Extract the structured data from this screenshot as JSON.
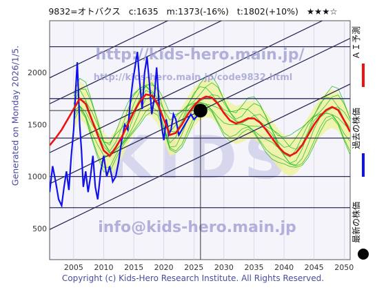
{
  "header": {
    "ticker": "9832=オトバクス",
    "current": "c:1635",
    "median": "m:1373(-16%)",
    "target": "t:1802(+10%)",
    "rating": "★★★☆"
  },
  "left_label": "Generated on Monday 2026/1/5.",
  "watermarks": {
    "top": "http://kids-hero.main.jp/",
    "mid": "http://kids-hero.main.jp/code9832.html",
    "bottom": "info@kids-hero.main.jp",
    "big": "KIDS"
  },
  "legend": {
    "ai": "ＡＩ予測",
    "past": "過去の株価",
    "latest": "最新の株価"
  },
  "footer": "Copyright (c) Kids-Hero Research Institute. All Rights Reserved.",
  "colors": {
    "ai": "#ee1111",
    "past": "#1111ee",
    "latest": "#000000",
    "band": "#eef2a0",
    "green": "#22bb22",
    "trend": "#2a2a5a"
  },
  "chart_data": {
    "type": "line",
    "xlim": [
      2001,
      2051
    ],
    "ylim": [
      200,
      2500
    ],
    "xticks": [
      2005,
      2010,
      2015,
      2020,
      2025,
      2030,
      2035,
      2040,
      2045,
      2050
    ],
    "yticks": [
      500,
      1000,
      1500,
      2000
    ],
    "hlines": [
      700,
      1000,
      1370,
      1750,
      2250
    ],
    "trend_lines": [
      {
        "x": [
          2001,
          2051
        ],
        "y": [
          1950,
          3350
        ]
      },
      {
        "x": [
          2001,
          2051
        ],
        "y": [
          1700,
          3100
        ]
      },
      {
        "x": [
          2001,
          2051
        ],
        "y": [
          1230,
          2630
        ]
      },
      {
        "x": [
          2001,
          2051
        ],
        "y": [
          930,
          2330
        ]
      },
      {
        "x": [
          2001,
          2051
        ],
        "y": [
          490,
          1890
        ]
      }
    ],
    "latest": {
      "x": 2026.1,
      "y": 1635
    },
    "series": [
      {
        "name": "過去の株価",
        "x": [
          2001,
          2001.5,
          2002,
          2002.5,
          2003,
          2003.4,
          2003.8,
          2004.2,
          2004.6,
          2005,
          2005.3,
          2005.6,
          2006,
          2006.3,
          2006.6,
          2007,
          2007.4,
          2007.8,
          2008.2,
          2008.6,
          2009,
          2009.5,
          2010,
          2010.5,
          2011,
          2011.5,
          2012,
          2012.5,
          2013,
          2013.5,
          2014,
          2014.4,
          2014.8,
          2015.2,
          2015.6,
          2016,
          2016.4,
          2016.8,
          2017.2,
          2017.6,
          2018,
          2018.4,
          2018.8,
          2019.2,
          2019.6,
          2020,
          2020.4,
          2020.8,
          2021.2,
          2021.6,
          2022,
          2022.5,
          2023,
          2023.5,
          2024,
          2024.5,
          2025,
          2025.5,
          2026
        ],
        "y": [
          850,
          1100,
          950,
          780,
          720,
          900,
          1050,
          870,
          1200,
          1450,
          1800,
          2100,
          1500,
          1250,
          900,
          1050,
          850,
          1000,
          1200,
          900,
          780,
          1050,
          1200,
          1000,
          1100,
          950,
          1000,
          1150,
          1350,
          1500,
          1450,
          1700,
          1900,
          2050,
          2200,
          1900,
          1650,
          2000,
          2150,
          1900,
          1600,
          1750,
          2050,
          1700,
          1500,
          1350,
          1550,
          1400,
          1450,
          1600,
          1550,
          1400,
          1450,
          1500,
          1550,
          1600,
          1550,
          1580,
          1635
        ]
      },
      {
        "name": "ＡＩ予測",
        "x": [
          2001,
          2002,
          2003,
          2004,
          2005,
          2006,
          2007,
          2008,
          2009,
          2010,
          2011,
          2012,
          2013,
          2014,
          2015,
          2016,
          2017,
          2018,
          2019,
          2020,
          2021,
          2022,
          2023,
          2024,
          2025,
          2026,
          2027,
          2028,
          2029,
          2030,
          2031,
          2032,
          2033,
          2034,
          2035,
          2036,
          2037,
          2038,
          2039,
          2040,
          2041,
          2042,
          2043,
          2044,
          2045,
          2046,
          2047,
          2048,
          2049,
          2050,
          2051
        ],
        "y": [
          1300,
          1370,
          1450,
          1550,
          1650,
          1750,
          1700,
          1550,
          1400,
          1250,
          1200,
          1280,
          1380,
          1500,
          1620,
          1720,
          1790,
          1780,
          1700,
          1550,
          1400,
          1420,
          1500,
          1600,
          1680,
          1740,
          1770,
          1760,
          1700,
          1610,
          1540,
          1510,
          1530,
          1560,
          1560,
          1520,
          1450,
          1370,
          1290,
          1230,
          1200,
          1230,
          1300,
          1400,
          1500,
          1580,
          1640,
          1670,
          1640,
          1540,
          1430
        ]
      }
    ]
  }
}
